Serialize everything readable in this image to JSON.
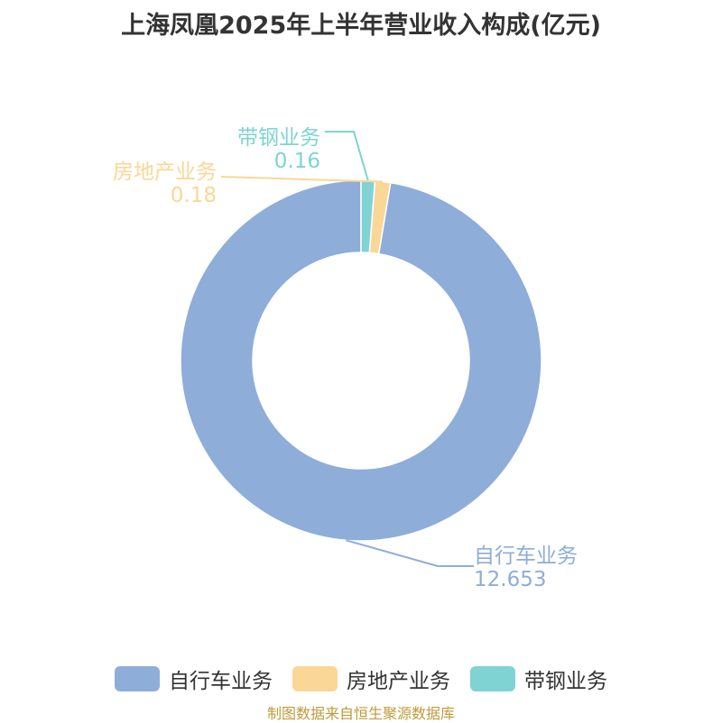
{
  "title": "上海凤凰2025年上半年营业收入构成(亿元)",
  "source": "制图数据来自恒生聚源数据库",
  "chart_data": {
    "type": "pie",
    "donut": true,
    "title": "上海凤凰2025年上半年营业收入构成(亿元)",
    "slices": [
      {
        "name": "自行车业务",
        "value": 12.653,
        "label": "12.653",
        "color": "#8eadd9"
      },
      {
        "name": "房地产业务",
        "value": 0.18,
        "label": "0.18",
        "color": "#fad796"
      },
      {
        "name": "带钢业务",
        "value": 0.16,
        "label": "0.16",
        "color": "#7fd3d3"
      }
    ],
    "legend": "bottom"
  }
}
